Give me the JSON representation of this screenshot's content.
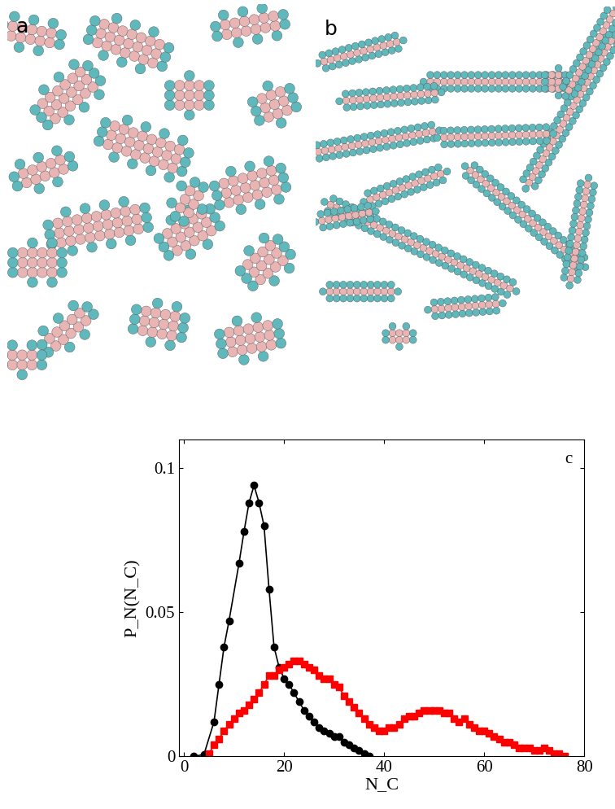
{
  "panels": [
    {
      "label": "a"
    },
    {
      "label": "b"
    }
  ],
  "chart_data": {
    "type": "line",
    "panel_label": "c",
    "x_label": "N_C",
    "y_label": "P_N(N_C)",
    "xlim": [
      -1,
      80
    ],
    "ylim": [
      0,
      0.11
    ],
    "xticks": [
      0,
      20,
      40,
      60,
      80
    ],
    "yticks": [
      0,
      0.05,
      0.1
    ],
    "series": [
      {
        "color": "#000000",
        "marker": "circle",
        "x": [
          2,
          4,
          6,
          7,
          8,
          9,
          11,
          12,
          13,
          14,
          15,
          16,
          17,
          18,
          19,
          20,
          21,
          22,
          23,
          24,
          25,
          26,
          27,
          28,
          29,
          30,
          31,
          32,
          33,
          34,
          35,
          36,
          37
        ],
        "values": [
          0.0,
          0.0007,
          0.012,
          0.025,
          0.038,
          0.047,
          0.067,
          0.078,
          0.088,
          0.094,
          0.088,
          0.08,
          0.058,
          0.038,
          0.031,
          0.027,
          0.025,
          0.022,
          0.019,
          0.016,
          0.014,
          0.012,
          0.01,
          0.009,
          0.008,
          0.007,
          0.007,
          0.005,
          0.004,
          0.003,
          0.002,
          0.001,
          0.0
        ]
      },
      {
        "color": "#ff0000",
        "marker": "square",
        "x": [
          5,
          6,
          7,
          8,
          9,
          10,
          11,
          12,
          13,
          14,
          15,
          16,
          17,
          18,
          19,
          20,
          21,
          22,
          23,
          24,
          25,
          26,
          27,
          28,
          29,
          30,
          31,
          32,
          33,
          34,
          35,
          36,
          37,
          38,
          39,
          40,
          41,
          42,
          43,
          44,
          45,
          46,
          47,
          48,
          49,
          50,
          51,
          52,
          53,
          54,
          55,
          56,
          57,
          58,
          59,
          60,
          61,
          62,
          63,
          64,
          65,
          66,
          67,
          68,
          69,
          70,
          71,
          72,
          73,
          74,
          75,
          76
        ],
        "values": [
          0.001,
          0.004,
          0.006,
          0.009,
          0.011,
          0.013,
          0.015,
          0.016,
          0.018,
          0.02,
          0.022,
          0.025,
          0.028,
          0.028,
          0.03,
          0.031,
          0.032,
          0.033,
          0.033,
          0.032,
          0.031,
          0.03,
          0.028,
          0.027,
          0.027,
          0.025,
          0.024,
          0.021,
          0.019,
          0.017,
          0.015,
          0.013,
          0.011,
          0.01,
          0.009,
          0.009,
          0.01,
          0.01,
          0.011,
          0.013,
          0.014,
          0.014,
          0.015,
          0.016,
          0.016,
          0.016,
          0.016,
          0.015,
          0.015,
          0.013,
          0.012,
          0.013,
          0.011,
          0.01,
          0.009,
          0.009,
          0.008,
          0.007,
          0.006,
          0.005,
          0.005,
          0.004,
          0.003,
          0.003,
          0.003,
          0.002,
          0.002,
          0.003,
          0.002,
          0.001,
          0.001,
          0.0
        ]
      }
    ]
  }
}
